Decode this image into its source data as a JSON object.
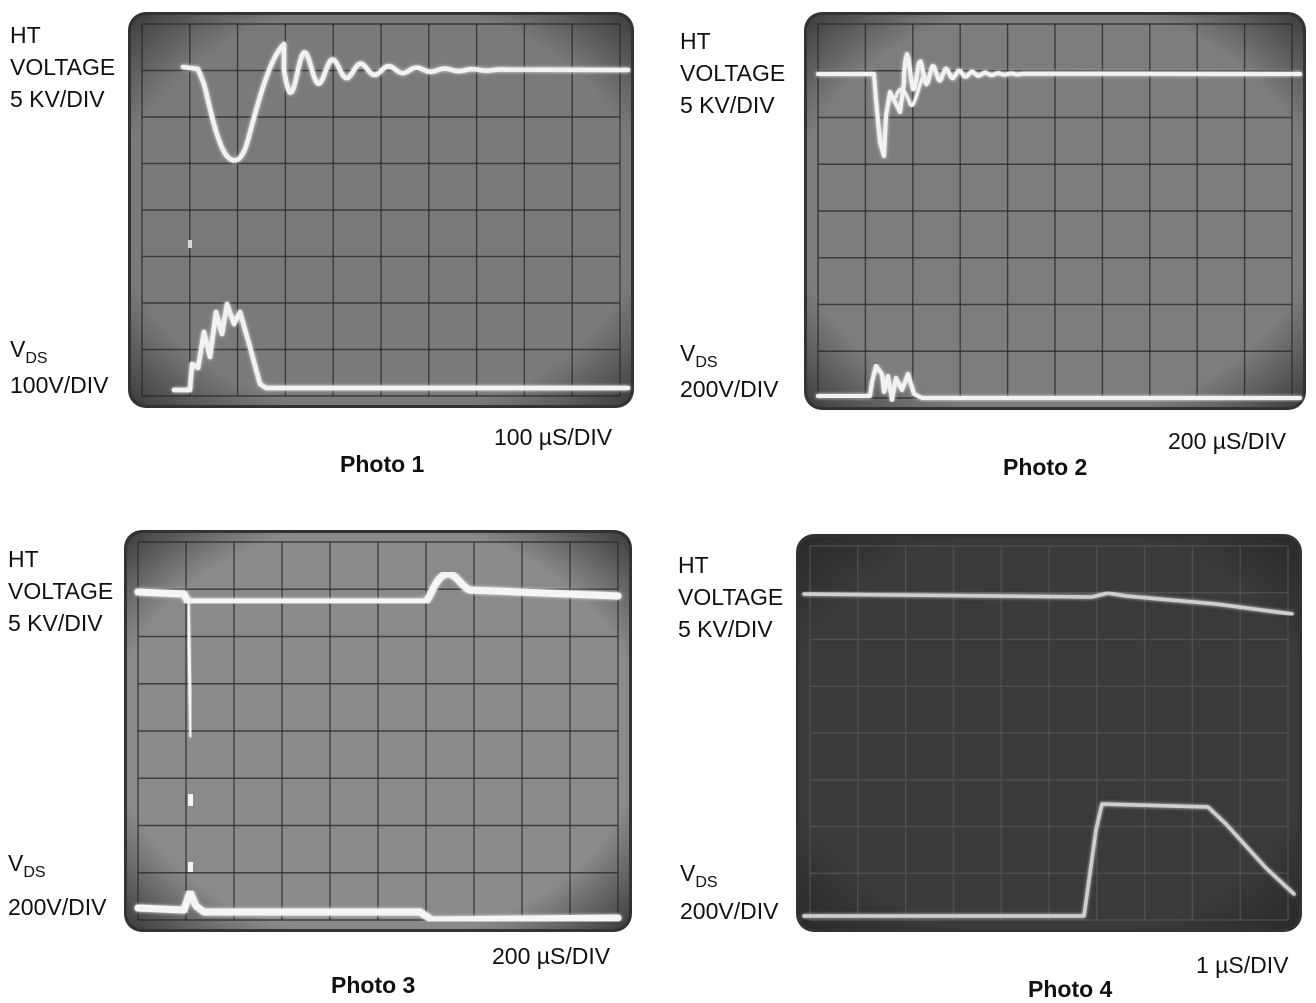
{
  "photos": [
    {
      "caption": "Photo 1",
      "timebase": "100 µS/DIV",
      "ht_label": [
        "HT",
        "VOLTAGE",
        "5 KV/DIV"
      ],
      "vds_label": {
        "main": "V",
        "sub": "DS",
        "scale": "100V/DIV"
      },
      "screen_tone": "#7a7a7a",
      "trace_color": "#f2f2f2"
    },
    {
      "caption": "Photo 2",
      "timebase": "200 µS/DIV",
      "ht_label": [
        "HT",
        "VOLTAGE",
        "5 KV/DIV"
      ],
      "vds_label": {
        "main": "V",
        "sub": "DS",
        "scale": "200V/DIV"
      },
      "screen_tone": "#7d7d7d",
      "trace_color": "#f2f2f2"
    },
    {
      "caption": "Photo 3",
      "timebase": "200 µS/DIV",
      "ht_label": [
        "HT",
        "VOLTAGE",
        "5 KV/DIV"
      ],
      "vds_label": {
        "main": "V",
        "sub": "DS",
        "scale": "200V/DIV"
      },
      "screen_tone": "#8a8a8a",
      "trace_color": "#f5f5f5"
    },
    {
      "caption": "Photo 4",
      "timebase": "1 µS/DIV",
      "ht_label": [
        "HT",
        "VOLTAGE",
        "5 KV/DIV"
      ],
      "vds_label": {
        "main": "V",
        "sub": "DS",
        "scale": "200V/DIV"
      },
      "screen_tone": "#3a3a3a",
      "trace_color": "#cfcfcf"
    }
  ]
}
